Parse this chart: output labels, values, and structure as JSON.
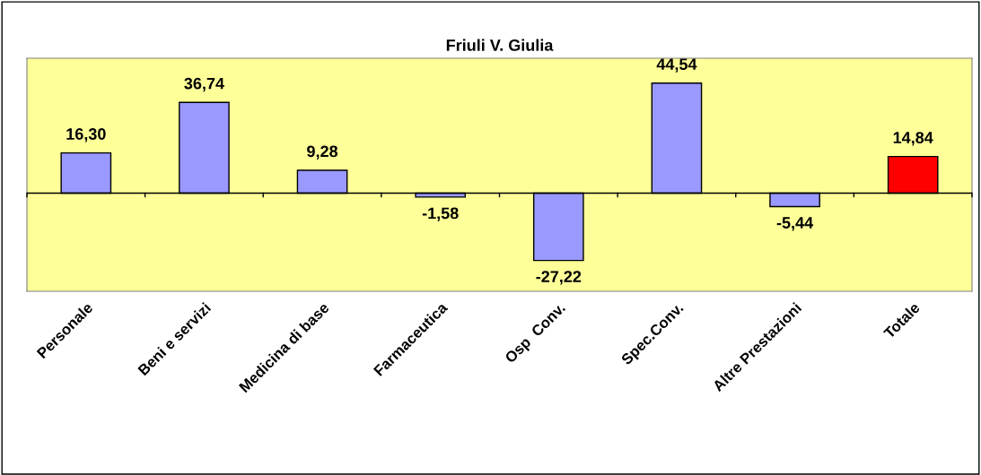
{
  "chart_data": {
    "type": "bar",
    "title": "Friuli V. Giulia",
    "categories": [
      "Personale",
      "Beni e servizi",
      "Medicina di base",
      "Farmaceutica",
      "Osp  Conv.",
      "Spec.Conv.",
      "Altre Prestazioni",
      "Totale"
    ],
    "values": [
      16.3,
      36.74,
      9.28,
      -1.58,
      -27.22,
      44.54,
      -5.44,
      14.84
    ],
    "colors": [
      "#9999ff",
      "#9999ff",
      "#9999ff",
      "#9999ff",
      "#9999ff",
      "#9999ff",
      "#9999ff",
      "#ff0000"
    ],
    "value_labels": [
      "16,30",
      "36,74",
      "9,28",
      "-1,58",
      "-27,22",
      "44,54",
      "-5,44",
      "14,84"
    ],
    "grid": false,
    "legend": false
  }
}
